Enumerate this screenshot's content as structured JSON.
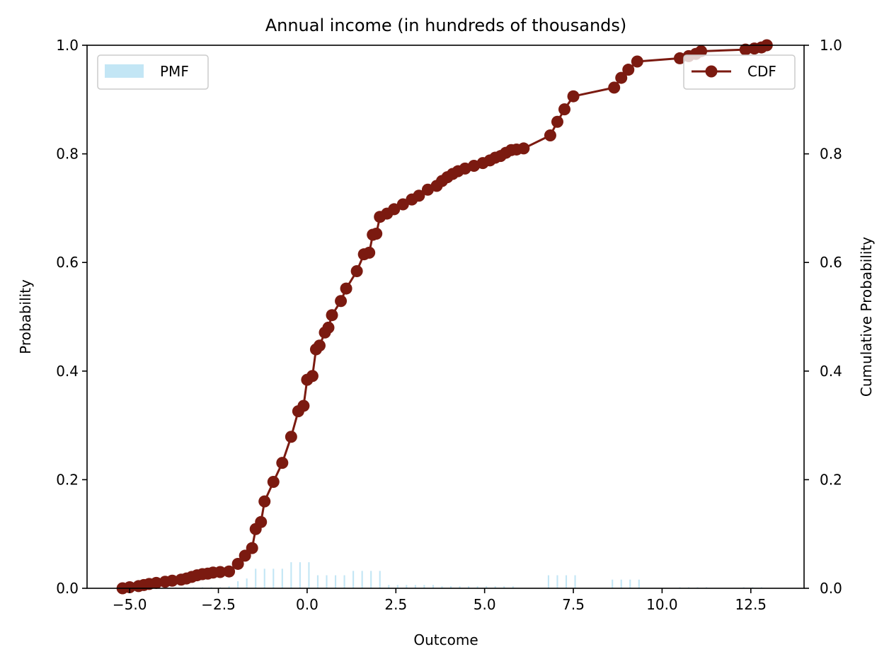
{
  "chart_data": {
    "type": "bar+line",
    "title": "Annual income (in hundreds of thousands)",
    "xlabel": "Outcome",
    "ylabel": "Probability",
    "y2label": "Cumulative Probability",
    "xlim": [
      -6.2,
      14.0
    ],
    "ylim": [
      0,
      1.0
    ],
    "y2lim": [
      0,
      1.0
    ],
    "x_ticks": [
      -5.0,
      -2.5,
      0.0,
      2.5,
      5.0,
      7.5,
      10.0,
      12.5
    ],
    "x_tick_labels": [
      "−5.0",
      "−2.5",
      "0.0",
      "2.5",
      "5.0",
      "7.5",
      "10.0",
      "12.5"
    ],
    "y_ticks": [
      0.0,
      0.2,
      0.4,
      0.6,
      0.8,
      1.0
    ],
    "y_tick_labels": [
      "0.0",
      "0.2",
      "0.4",
      "0.6",
      "0.8",
      "1.0"
    ],
    "y2_tick_labels": [
      "0.0",
      "0.2",
      "0.4",
      "0.6",
      "0.8",
      "1.0"
    ],
    "colors": {
      "pmf": "#87ceeb",
      "cdf": "#7b1a10"
    },
    "legend_pmf": {
      "label": "PMF",
      "position": "upper-left"
    },
    "legend_cdf": {
      "label": "CDF",
      "position": "upper-right"
    },
    "pmf": {
      "name": "PMF",
      "x": [
        -5.2,
        -4.95,
        -4.7,
        -4.45,
        -4.2,
        -3.95,
        -3.7,
        -3.45,
        -3.2,
        -2.95,
        -2.7,
        -2.45,
        -2.2,
        -1.95,
        -1.7,
        -1.45,
        -1.2,
        -0.95,
        -0.7,
        -0.45,
        -0.2,
        0.05,
        0.3,
        0.55,
        0.8,
        1.05,
        1.3,
        1.55,
        1.8,
        2.05,
        2.3,
        2.55,
        2.8,
        3.05,
        3.3,
        3.55,
        3.8,
        4.05,
        4.3,
        4.55,
        4.8,
        5.05,
        5.3,
        5.55,
        5.8,
        6.8,
        7.05,
        7.3,
        7.55,
        8.6,
        8.85,
        9.1,
        9.35,
        10.5,
        10.75,
        11.0,
        11.25,
        12.3,
        12.55,
        12.8
      ],
      "values": [
        0.002,
        0.002,
        0.002,
        0.002,
        0.002,
        0.002,
        0.002,
        0.002,
        0.002,
        0.002,
        0.002,
        0.002,
        0.004,
        0.013,
        0.018,
        0.036,
        0.036,
        0.036,
        0.036,
        0.048,
        0.048,
        0.048,
        0.024,
        0.024,
        0.024,
        0.024,
        0.032,
        0.032,
        0.032,
        0.032,
        0.006,
        0.006,
        0.006,
        0.006,
        0.006,
        0.006,
        0.004,
        0.004,
        0.004,
        0.004,
        0.004,
        0.004,
        0.004,
        0.004,
        0.004,
        0.024,
        0.024,
        0.024,
        0.024,
        0.016,
        0.016,
        0.016,
        0.016,
        0.002,
        0.002,
        0.002,
        0.002,
        0.002,
        0.002,
        0.002
      ]
    },
    "cdf": {
      "name": "CDF",
      "x": [
        -5.2,
        -5.0,
        -4.75,
        -4.6,
        -4.45,
        -4.25,
        -4.0,
        -3.8,
        -3.55,
        -3.4,
        -3.25,
        -3.1,
        -2.95,
        -2.8,
        -2.65,
        -2.45,
        -2.2,
        -1.95,
        -1.75,
        -1.55,
        -1.45,
        -1.3,
        -1.2,
        -0.95,
        -0.7,
        -0.45,
        -0.25,
        -0.1,
        0.0,
        0.15,
        0.25,
        0.35,
        0.5,
        0.6,
        0.7,
        0.95,
        1.1,
        1.4,
        1.6,
        1.75,
        1.85,
        1.95,
        2.05,
        2.25,
        2.45,
        2.7,
        2.95,
        3.15,
        3.4,
        3.65,
        3.8,
        3.95,
        4.1,
        4.25,
        4.45,
        4.7,
        4.95,
        5.15,
        5.3,
        5.45,
        5.6,
        5.75,
        5.9,
        6.1,
        6.85,
        7.05,
        7.25,
        7.5,
        8.65,
        8.85,
        9.05,
        9.3,
        10.5,
        10.75,
        10.95,
        11.1,
        12.35,
        12.6,
        12.8,
        12.95
      ],
      "values": [
        0.0,
        0.002,
        0.004,
        0.006,
        0.008,
        0.01,
        0.012,
        0.014,
        0.016,
        0.018,
        0.021,
        0.024,
        0.026,
        0.027,
        0.029,
        0.03,
        0.031,
        0.045,
        0.06,
        0.074,
        0.109,
        0.122,
        0.16,
        0.196,
        0.231,
        0.279,
        0.326,
        0.336,
        0.384,
        0.391,
        0.44,
        0.447,
        0.471,
        0.48,
        0.503,
        0.529,
        0.552,
        0.584,
        0.615,
        0.618,
        0.651,
        0.653,
        0.684,
        0.69,
        0.698,
        0.707,
        0.716,
        0.723,
        0.734,
        0.741,
        0.75,
        0.757,
        0.763,
        0.768,
        0.773,
        0.778,
        0.783,
        0.788,
        0.793,
        0.796,
        0.802,
        0.807,
        0.808,
        0.81,
        0.834,
        0.859,
        0.882,
        0.906,
        0.922,
        0.94,
        0.955,
        0.97,
        0.976,
        0.98,
        0.984,
        0.989,
        0.992,
        0.994,
        0.996,
        1.0
      ]
    }
  }
}
